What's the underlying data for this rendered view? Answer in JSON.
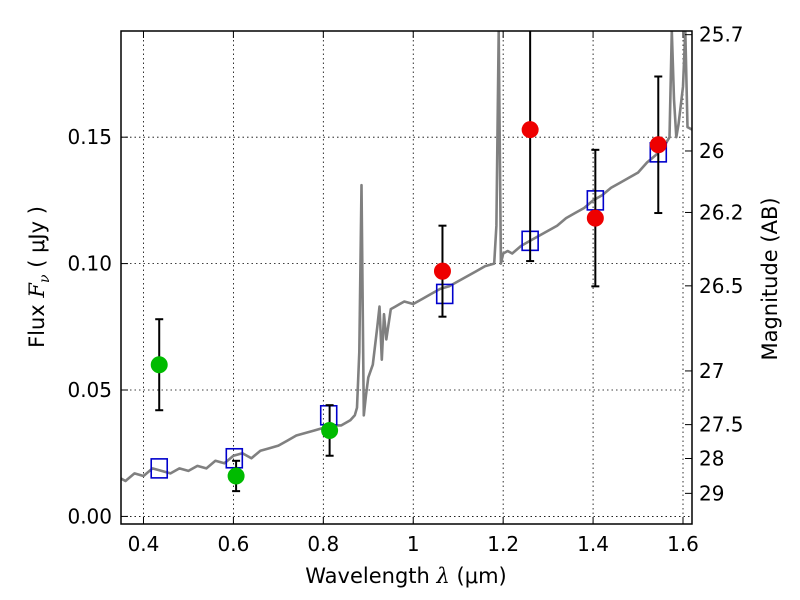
{
  "chart_data": {
    "type": "scatter",
    "xlabel": "Wavelength",
    "xlabel_symbol": "λ",
    "xlabel_unit": "(μm)",
    "ylabel": "Flux",
    "ylabel_symbol": "F",
    "ylabel_subscript": "ν",
    "ylabel_unit": "( μJy )",
    "y2label": "Magnitude (AB)",
    "xlim": [
      0.35,
      1.62
    ],
    "ylim": [
      -0.003,
      0.192
    ],
    "grid": true,
    "xticks": [
      {
        "v": 0.4,
        "label": "0.4"
      },
      {
        "v": 0.6,
        "label": "0.6"
      },
      {
        "v": 0.8,
        "label": "0.8"
      },
      {
        "v": 1.0,
        "label": "1"
      },
      {
        "v": 1.2,
        "label": "1.2"
      },
      {
        "v": 1.4,
        "label": "1.4"
      },
      {
        "v": 1.6,
        "label": "1.6"
      }
    ],
    "yticks": [
      {
        "v": 0.0,
        "label": "0.00"
      },
      {
        "v": 0.05,
        "label": "0.05"
      },
      {
        "v": 0.1,
        "label": "0.10"
      },
      {
        "v": 0.15,
        "label": "0.15"
      }
    ],
    "y2ticks": [
      {
        "label": "25.7",
        "mag": 25.7
      },
      {
        "label": "26",
        "mag": 26.0
      },
      {
        "label": "26.2",
        "mag": 26.2
      },
      {
        "label": "26.5",
        "mag": 26.5
      },
      {
        "label": "27",
        "mag": 27.0
      },
      {
        "label": "27.5",
        "mag": 27.5
      },
      {
        "label": "28",
        "mag": 28.0
      },
      {
        "label": "29",
        "mag": 29.0
      }
    ],
    "series": [
      {
        "kind": "line",
        "color": "#808080",
        "x": [
          0.35,
          0.36,
          0.38,
          0.4,
          0.42,
          0.44,
          0.46,
          0.48,
          0.5,
          0.52,
          0.54,
          0.56,
          0.58,
          0.6,
          0.62,
          0.64,
          0.66,
          0.68,
          0.7,
          0.72,
          0.74,
          0.76,
          0.78,
          0.8,
          0.82,
          0.84,
          0.86,
          0.87,
          0.875,
          0.88,
          0.885,
          0.89,
          0.895,
          0.9,
          0.91,
          0.92,
          0.925,
          0.93,
          0.935,
          0.94,
          0.95,
          0.96,
          0.97,
          0.98,
          1.0,
          1.02,
          1.04,
          1.06,
          1.08,
          1.1,
          1.12,
          1.14,
          1.16,
          1.18,
          1.185,
          1.19,
          1.195,
          1.2,
          1.21,
          1.22,
          1.24,
          1.26,
          1.28,
          1.3,
          1.32,
          1.34,
          1.36,
          1.38,
          1.4,
          1.42,
          1.44,
          1.46,
          1.48,
          1.5,
          1.52,
          1.54,
          1.56,
          1.57,
          1.575,
          1.58,
          1.585,
          1.59,
          1.6,
          1.605,
          1.61,
          1.62
        ],
        "y": [
          0.015,
          0.014,
          0.017,
          0.016,
          0.019,
          0.018,
          0.017,
          0.019,
          0.018,
          0.02,
          0.019,
          0.022,
          0.021,
          0.024,
          0.025,
          0.023,
          0.026,
          0.027,
          0.028,
          0.03,
          0.032,
          0.033,
          0.034,
          0.035,
          0.036,
          0.036,
          0.038,
          0.04,
          0.043,
          0.065,
          0.131,
          0.04,
          0.048,
          0.055,
          0.06,
          0.075,
          0.083,
          0.062,
          0.08,
          0.07,
          0.082,
          0.083,
          0.084,
          0.085,
          0.084,
          0.086,
          0.088,
          0.09,
          0.091,
          0.093,
          0.095,
          0.097,
          0.099,
          0.1,
          0.115,
          0.192,
          0.1,
          0.104,
          0.105,
          0.104,
          0.107,
          0.109,
          0.111,
          0.113,
          0.115,
          0.118,
          0.12,
          0.122,
          0.125,
          0.127,
          0.13,
          0.132,
          0.134,
          0.136,
          0.14,
          0.143,
          0.147,
          0.15,
          0.192,
          0.165,
          0.15,
          0.155,
          0.17,
          0.192,
          0.154,
          0.153
        ]
      },
      {
        "kind": "open-square",
        "color": "#0000cc",
        "x": [
          0.435,
          0.602,
          0.812,
          1.07,
          1.26,
          1.405,
          1.545
        ],
        "y": [
          0.019,
          0.023,
          0.04,
          0.088,
          0.109,
          0.125,
          0.144
        ]
      },
      {
        "kind": "point-errorbar",
        "color": "#00bb00",
        "x": [
          0.435,
          0.606,
          0.814
        ],
        "y": [
          0.06,
          0.016,
          0.034
        ],
        "err": [
          0.018,
          0.006,
          0.01
        ]
      },
      {
        "kind": "point-errorbar",
        "color": "#ee0000",
        "x": [
          1.065,
          1.26,
          1.405,
          1.545
        ],
        "y": [
          0.097,
          0.153,
          0.118,
          0.147
        ],
        "err": [
          0.018,
          0.052,
          0.027,
          0.027
        ]
      }
    ]
  }
}
